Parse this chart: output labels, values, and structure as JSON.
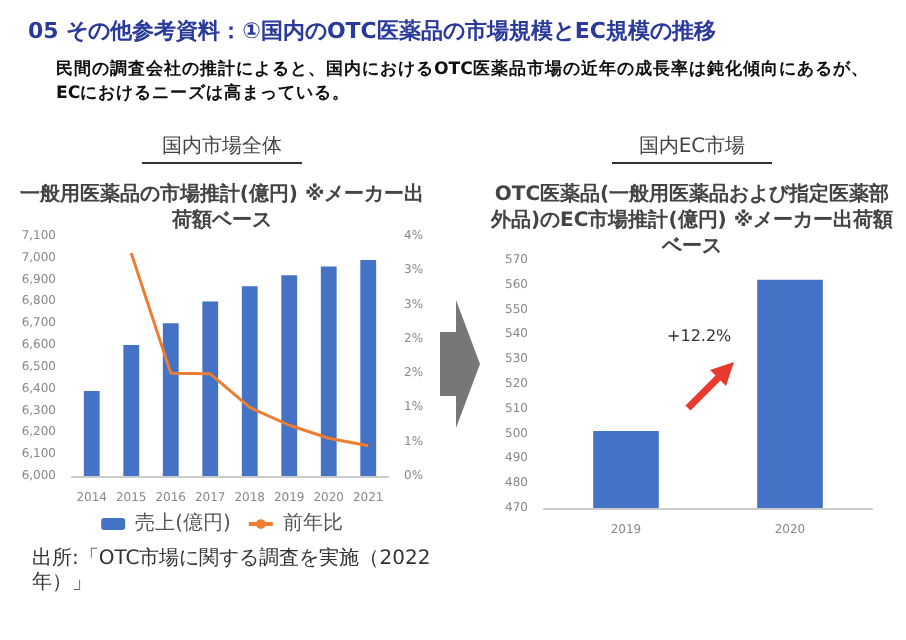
{
  "chart_data": [
    {
      "type": "other",
      "title": "05 その他参考資料：①国内のOTC医薬品の市場規模とEC規模の推移",
      "annotations": [
        "民間の調査会社の推計によると、国内におけるOTC医薬品市場の近年の成長率は鈍化傾向にあるが、",
        "ECにおけるニーズは高まっている。"
      ]
    },
    {
      "type": "bar",
      "subtitle": "国内市場全体",
      "title": "一般用医薬品の市場推計(億円) ※メーカー出荷額ベース",
      "categories": [
        "2014",
        "2015",
        "2016",
        "2017",
        "2018",
        "2019",
        "2020",
        "2021"
      ],
      "series": [
        {
          "name": "売上(億円)",
          "type": "bar",
          "color": "#4472c4",
          "values": [
            6390,
            6600,
            6700,
            6800,
            6870,
            6920,
            6960,
            6990
          ]
        },
        {
          "name": "前年比",
          "type": "line",
          "axis": "y2",
          "color": "#ed7d31",
          "values": [
            null,
            3.25,
            1.5,
            1.49,
            1.0,
            0.74,
            0.55,
            0.44
          ]
        }
      ],
      "marker": "none",
      "legend": "bottom",
      "ylim": [
        6000,
        7100
      ],
      "yticks": [
        {
          "value": 6000,
          "label": "6,000"
        },
        {
          "value": 6100,
          "label": "6,100"
        },
        {
          "value": 6200,
          "label": "6,200"
        },
        {
          "value": 6300,
          "label": "6,300"
        },
        {
          "value": 6400,
          "label": "6,400"
        },
        {
          "value": 6500,
          "label": "6,500"
        },
        {
          "value": 6600,
          "label": "6,600"
        },
        {
          "value": 6700,
          "label": "6,700"
        },
        {
          "value": 6800,
          "label": "6,800"
        },
        {
          "value": 6900,
          "label": "6,900"
        },
        {
          "value": 7000,
          "label": "7,000"
        },
        {
          "value": 7100,
          "label": "7,100"
        }
      ],
      "y2lim": [
        0,
        3.5
      ],
      "y2ticks": [
        {
          "value": 0,
          "label": "0%"
        },
        {
          "value": 0.5,
          "label": "1%"
        },
        {
          "value": 1,
          "label": "1%"
        },
        {
          "value": 1.5,
          "label": "2%"
        },
        {
          "value": 2,
          "label": "2%"
        },
        {
          "value": 2.5,
          "label": "3%"
        },
        {
          "value": 3,
          "label": "3%"
        },
        {
          "value": 3.5,
          "label": "4%"
        }
      ],
      "annotations": [
        "出所:「OTC市場に関する調査を実施（2022年）」"
      ]
    },
    {
      "type": "bar",
      "subtitle": "国内EC市場",
      "title": "OTC医薬品(一般用医薬品および指定医薬部外品)のEC市場推計(億円) ※メーカー出荷額ベース",
      "categories": [
        "2019",
        "2020"
      ],
      "series": [
        {
          "color": "#4472c4",
          "values": [
            501,
            562
          ]
        }
      ],
      "ylim": [
        470,
        570
      ],
      "yticks": [
        470,
        480,
        490,
        500,
        510,
        520,
        530,
        540,
        550,
        560,
        570
      ],
      "annotations": [
        "+12.2%"
      ]
    }
  ]
}
